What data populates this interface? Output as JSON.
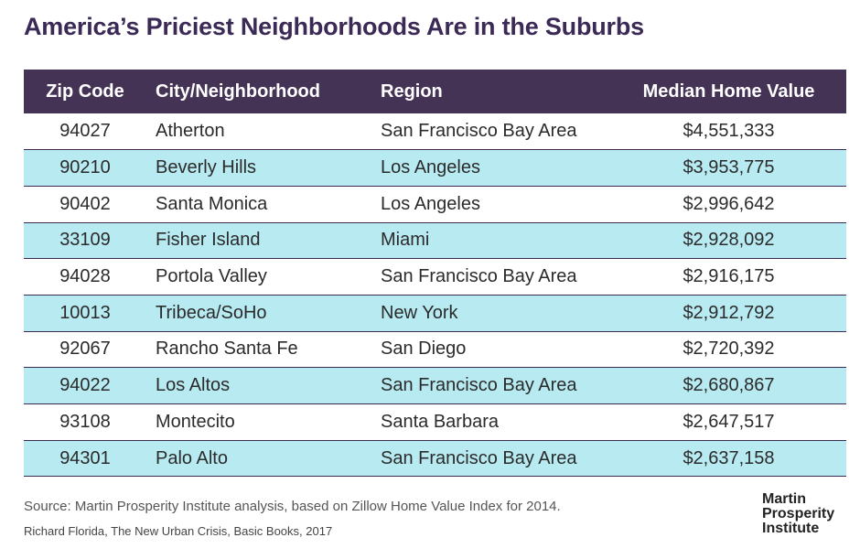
{
  "title": "America’s Priciest Neighborhoods Are in the Suburbs",
  "chart_data": {
    "type": "table",
    "title": "America’s Priciest Neighborhoods Are in the Suburbs",
    "columns": [
      "Zip Code",
      "City/Neighborhood",
      "Region",
      "Median Home Value"
    ],
    "rows": [
      [
        "94027",
        "Atherton",
        "San Francisco Bay Area",
        "$4,551,333"
      ],
      [
        "90210",
        "Beverly Hills",
        "Los Angeles",
        "$3,953,775"
      ],
      [
        "90402",
        "Santa Monica",
        "Los Angeles",
        "$2,996,642"
      ],
      [
        "33109",
        "Fisher Island",
        "Miami",
        "$2,928,092"
      ],
      [
        "94028",
        "Portola Valley",
        "San Francisco Bay Area",
        "$2,916,175"
      ],
      [
        "10013",
        "Tribeca/SoHo",
        "New York",
        "$2,912,792"
      ],
      [
        "92067",
        "Rancho Santa Fe",
        "San Diego",
        "$2,720,392"
      ],
      [
        "94022",
        "Los Altos",
        "San Francisco Bay Area",
        "$2,680,867"
      ],
      [
        "93108",
        "Montecito",
        "Santa Barbara",
        "$2,647,517"
      ],
      [
        "94301",
        "Palo Alto",
        "San Francisco Bay Area",
        "$2,637,158"
      ]
    ],
    "values": [
      4551333,
      3953775,
      2996642,
      2928092,
      2916175,
      2912792,
      2720392,
      2680867,
      2647517,
      2637158
    ]
  },
  "source": "Source: Martin Prosperity Institute analysis, based on Zillow Home Value Index for 2014.",
  "credit": "Richard Florida, The New Urban Crisis, Basic Books, 2017",
  "logo": [
    "Martin",
    "Prosperity",
    "Institute"
  ],
  "colors": {
    "header_bg": "#443355",
    "title": "#3b2a55",
    "stripe": "#b8eaf2"
  }
}
